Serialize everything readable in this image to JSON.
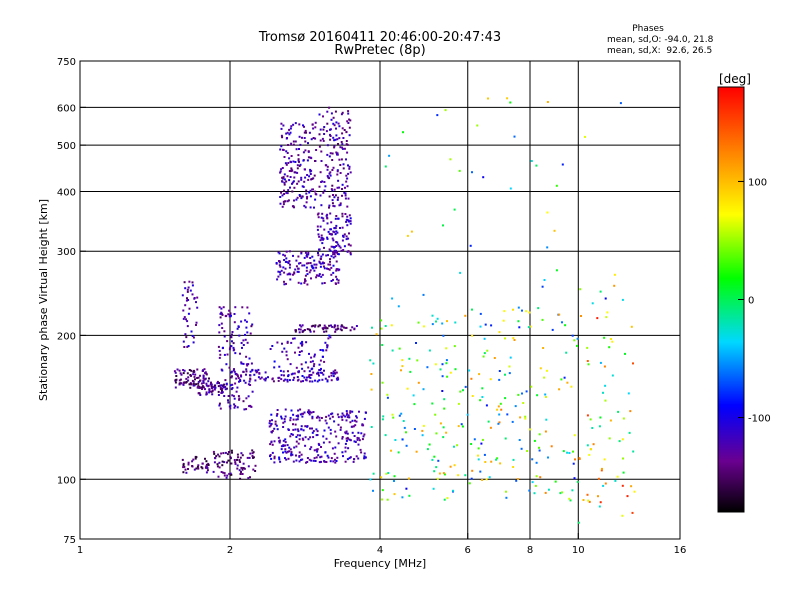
{
  "chart_data": {
    "type": "scatter",
    "title": "Tromsø 20160411 20:46:00-20:47:43",
    "subtitle": "RwPretec (8p)",
    "xlabel": "Frequency [MHz]",
    "ylabel": "Stationary phase Virtual Height [km]",
    "x_scale": "log",
    "y_scale": "log",
    "xlim": [
      1,
      16
    ],
    "ylim": [
      75,
      750
    ],
    "x_ticks": [
      1,
      2,
      4,
      6,
      8,
      10,
      16
    ],
    "x_tick_labels": [
      "1",
      "2",
      "4",
      "6",
      "8",
      "10",
      "16"
    ],
    "y_ticks": [
      75,
      100,
      200,
      300,
      400,
      500,
      600,
      750
    ],
    "y_tick_labels": [
      "75",
      "100",
      "200",
      "300",
      "400",
      "500",
      "600",
      "750"
    ],
    "grid": true,
    "phase_stats": {
      "heading": "Phases",
      "line_o": "mean, sd,O: -94.0, 21.8",
      "line_x": "mean, sd,X:  92.6, 26.5"
    },
    "colorbar": {
      "label": "[deg]",
      "range": [
        -180,
        180
      ],
      "ticks": [
        100,
        0,
        -100
      ],
      "tick_labels": [
        "100",
        "0",
        "-100"
      ],
      "colormap": "rainbow (black → purple → blue → cyan → green → yellow → orange → red)"
    },
    "point_groups": [
      {
        "f": [
          2.52,
          2.98
        ],
        "h": [
          370,
          560
        ],
        "phase": -125,
        "count": 180
      },
      {
        "f": [
          3.02,
          3.5
        ],
        "h": [
          370,
          600
        ],
        "phase": -125,
        "count": 150
      },
      {
        "f": [
          2.48,
          3.32
        ],
        "h": [
          255,
          300
        ],
        "phase": -120,
        "count": 150
      },
      {
        "f": [
          3.0,
          3.5
        ],
        "h": [
          295,
          360
        ],
        "phase": -120,
        "count": 110
      },
      {
        "f": [
          2.7,
          3.6
        ],
        "h": [
          203,
          210
        ],
        "phase": -140,
        "count": 60
      },
      {
        "f": [
          1.55,
          1.82
        ],
        "h": [
          155,
          170
        ],
        "phase": -140,
        "count": 90
      },
      {
        "f": [
          1.72,
          1.98
        ],
        "h": [
          150,
          160
        ],
        "phase": -135,
        "count": 60
      },
      {
        "f": [
          1.9,
          2.22
        ],
        "h": [
          140,
          230
        ],
        "phase": -125,
        "count": 140
      },
      {
        "f": [
          2.0,
          3.3
        ],
        "h": [
          160,
          170
        ],
        "phase": -120,
        "count": 120
      },
      {
        "f": [
          2.4,
          3.75
        ],
        "h": [
          108,
          140
        ],
        "phase": -120,
        "count": 300
      },
      {
        "f": [
          1.6,
          1.85
        ],
        "h": [
          103,
          112
        ],
        "phase": -145,
        "count": 40
      },
      {
        "f": [
          1.85,
          2.25
        ],
        "h": [
          100,
          115
        ],
        "phase": -140,
        "count": 80
      },
      {
        "f": [
          1.6,
          1.72
        ],
        "h": [
          185,
          270
        ],
        "phase": -125,
        "count": 40
      },
      {
        "f": [
          2.4,
          3.2
        ],
        "h": [
          170,
          200
        ],
        "phase": -115,
        "count": 60
      },
      {
        "f": [
          3.8,
          6.0
        ],
        "h": [
          90,
          220
        ],
        "phase": 10,
        "count": 130
      },
      {
        "f": [
          6.0,
          10.0
        ],
        "h": [
          90,
          230
        ],
        "phase": 20,
        "count": 150
      },
      {
        "f": [
          10.0,
          13.0
        ],
        "h": [
          80,
          260
        ],
        "phase": 60,
        "count": 70
      },
      {
        "f": [
          4.0,
          13.5
        ],
        "h": [
          230,
          650
        ],
        "phase": 0,
        "count": 40
      }
    ]
  }
}
